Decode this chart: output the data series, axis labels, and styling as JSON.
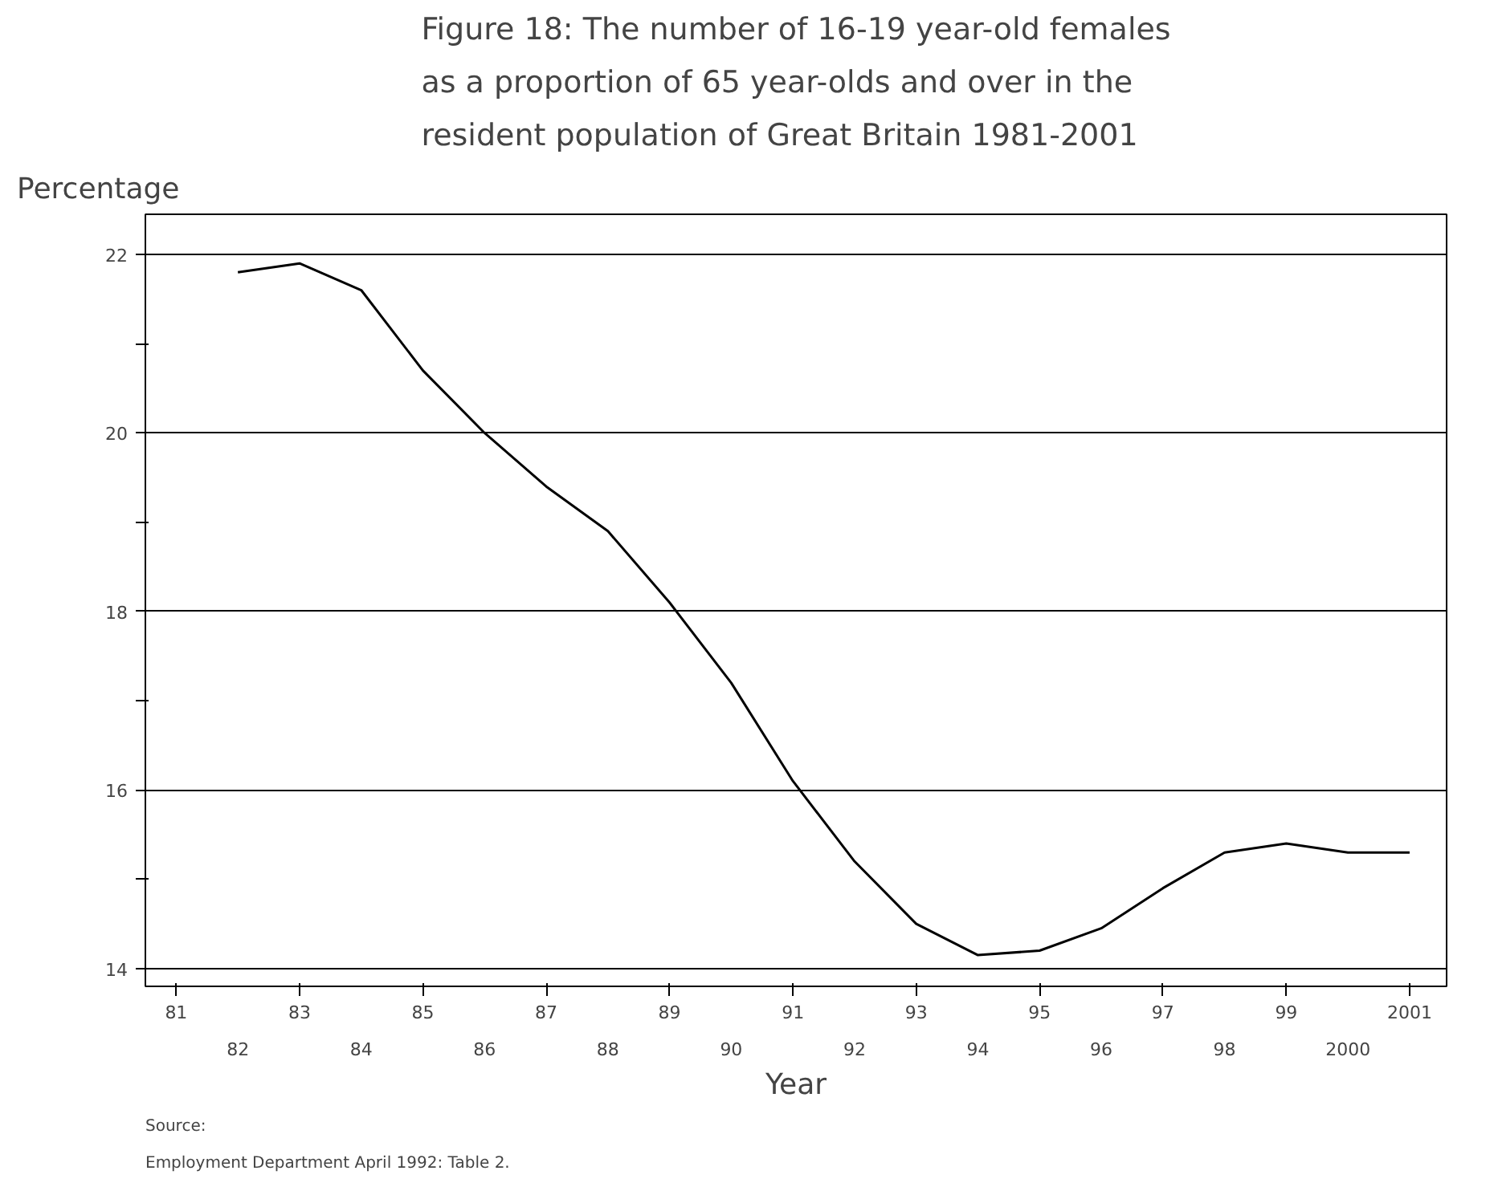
{
  "chart_data": {
    "type": "line",
    "title": "Figure 18: The number of 16-19 year-old females\nas a proportion of 65 year-olds and over in the\nresident population of Great Britain 1981-2001",
    "xlabel": "Year",
    "ylabel": "Percentage",
    "categories": [
      "81",
      "82",
      "83",
      "84",
      "85",
      "86",
      "87",
      "88",
      "89",
      "90",
      "91",
      "92",
      "93",
      "94",
      "95",
      "96",
      "97",
      "98",
      "99",
      "2000",
      "2001"
    ],
    "series": [
      {
        "color": "#000000",
        "values": [
          null,
          21.8,
          21.9,
          21.6,
          20.7,
          20.0,
          19.4,
          18.9,
          18.1,
          17.2,
          16.1,
          15.2,
          14.5,
          14.15,
          14.2,
          14.45,
          14.9,
          15.3,
          15.4,
          15.3,
          15.3
        ]
      }
    ],
    "ylim": [
      13.8,
      22.45
    ],
    "yticks": [
      14,
      {
        "value": 15,
        "label": null
      },
      16,
      {
        "value": 17,
        "label": null
      },
      18,
      {
        "value": 19,
        "label": null
      },
      20,
      {
        "value": 21,
        "label": null
      },
      22
    ],
    "grid": "y",
    "marker": "none",
    "line_style": "solid",
    "annotations": [
      "Source:",
      "Employment Department April 1992: Table 2."
    ]
  }
}
